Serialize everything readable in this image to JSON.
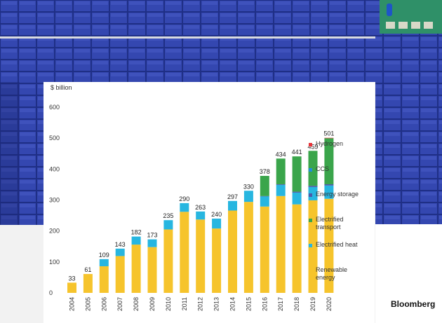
{
  "brand": "Bloomberg",
  "colors": {
    "hydrogen": "#e8343a",
    "ccs": "#1f8ed6",
    "energy_storage": "#4b5aa8",
    "electrified_transport": "#3aa54b",
    "electrified_heat": "#27b6e0",
    "renewable_energy": "#f6c42c"
  },
  "legend": [
    {
      "label": "Hydrogen",
      "color_key": "hydrogen"
    },
    {
      "label": "CCS",
      "color_key": "ccs"
    },
    {
      "label": "Energy storage",
      "color_key": "energy_storage"
    },
    {
      "label": "Electrified\ntransport",
      "color_key": "electrified_transport"
    },
    {
      "label": "Electrified heat",
      "color_key": "electrified_heat"
    },
    {
      "label": "Renewable\nenergy",
      "color_key": "renewable_energy"
    }
  ],
  "chart_data": {
    "type": "bar",
    "stacked": true,
    "title": "",
    "xlabel": "",
    "ylabel": "$ billion",
    "ylim": [
      0,
      600
    ],
    "yticks": [
      0,
      100,
      200,
      300,
      400,
      500,
      600
    ],
    "grid": false,
    "legend_position": "right",
    "categories": [
      "2004",
      "2005",
      "2006",
      "2007",
      "2008",
      "2009",
      "2010",
      "2011",
      "2012",
      "2013",
      "2014",
      "2015",
      "2016",
      "2017",
      "2018",
      "2019",
      "2020"
    ],
    "totals": [
      33,
      61,
      109,
      143,
      182,
      173,
      235,
      290,
      263,
      240,
      297,
      330,
      378,
      434,
      441,
      459,
      501
    ],
    "series": [
      {
        "name": "Renewable energy",
        "color_key": "renewable_energy",
        "values": [
          33,
          61,
          86,
          119,
          156,
          148,
          205,
          262,
          237,
          208,
          266,
          294,
          279,
          313,
          286,
          299,
          304
        ]
      },
      {
        "name": "Electrified heat",
        "color_key": "electrified_heat",
        "values": [
          0,
          0,
          23,
          24,
          26,
          25,
          30,
          28,
          26,
          32,
          31,
          36,
          33,
          36,
          38,
          43,
          43
        ]
      },
      {
        "name": "Energy storage",
        "color_key": "energy_storage",
        "values": [
          0,
          0,
          0,
          0,
          0,
          0,
          0,
          0,
          0,
          0,
          0,
          0,
          1,
          2,
          3,
          4,
          4
        ]
      },
      {
        "name": "Electrified transport",
        "color_key": "electrified_transport",
        "values": [
          0,
          0,
          0,
          0,
          0,
          0,
          0,
          0,
          0,
          0,
          0,
          0,
          65,
          83,
          114,
          113,
          149
        ]
      },
      {
        "name": "CCS",
        "color_key": "ccs",
        "values": [
          0,
          0,
          0,
          0,
          0,
          0,
          0,
          0,
          0,
          0,
          0,
          0,
          0,
          0,
          0,
          0,
          0
        ]
      },
      {
        "name": "Hydrogen",
        "color_key": "hydrogen",
        "values": [
          0,
          0,
          0,
          0,
          0,
          0,
          0,
          0,
          0,
          0,
          0,
          0,
          0,
          0,
          0,
          0,
          1
        ]
      }
    ]
  }
}
